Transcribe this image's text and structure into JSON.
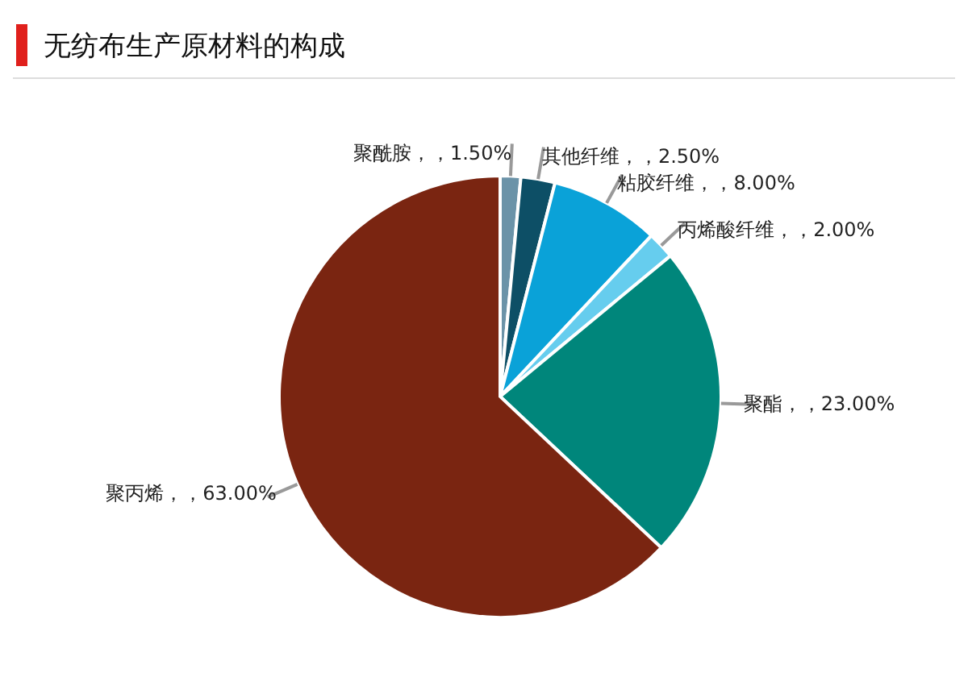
{
  "chart_data": {
    "type": "pie",
    "title": "无纺布生产原材料的构成",
    "categories": [
      "聚酰胺",
      "其他纤维",
      "粘胶纤维",
      "丙烯酸纤维",
      "聚酯",
      "聚丙烯"
    ],
    "values": [
      1.5,
      2.5,
      8,
      2,
      23,
      63
    ],
    "value_labels": [
      "，，1.50%",
      "，，2.50%",
      "，，8.00%",
      "，，2.00%",
      "，，23.00%",
      "，，63.00%"
    ],
    "colors": [
      "#6b93a8",
      "#0d4f66",
      "#0aa2d8",
      "#66cdee",
      "#00867b",
      "#7a2511"
    ]
  }
}
